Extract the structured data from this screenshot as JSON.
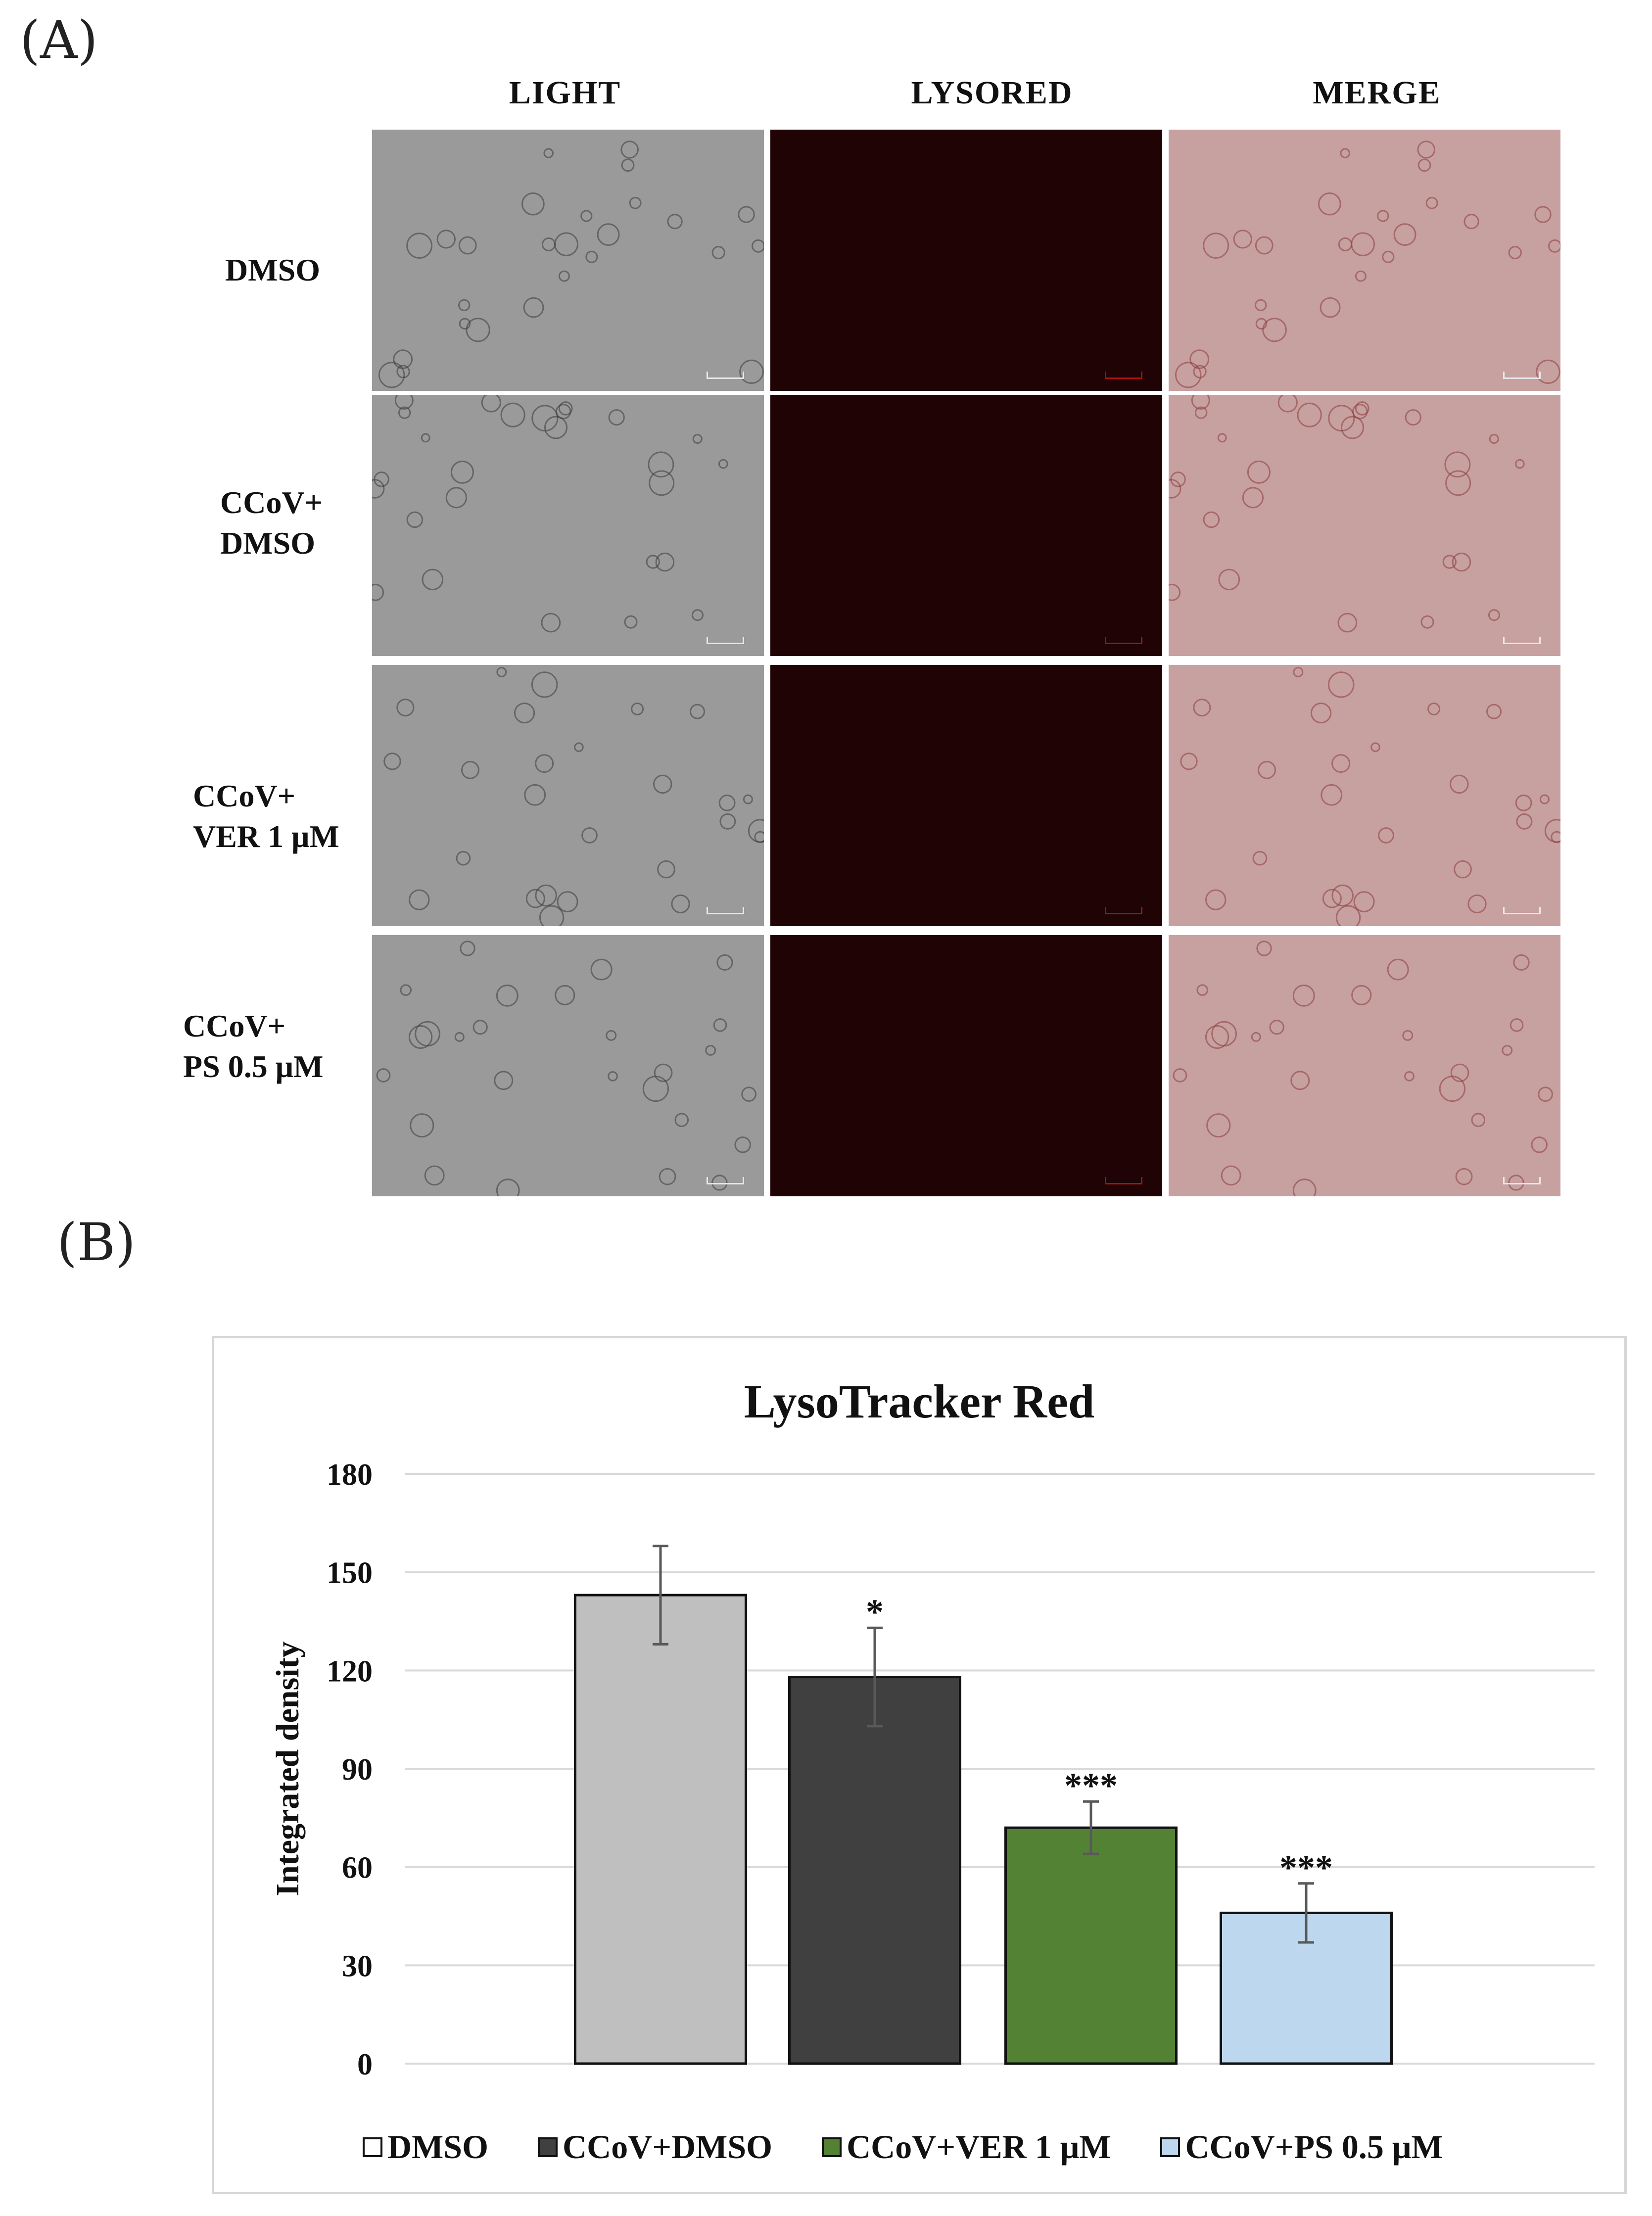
{
  "panel_a": {
    "label": "(A)",
    "columns": [
      "LIGHT",
      "LYSORED",
      "MERGE"
    ],
    "rows": [
      {
        "label": "DMSO"
      },
      {
        "label": "CCoV+\nDMSO"
      },
      {
        "label": "CCoV+\nVER 1 μM"
      },
      {
        "label": "CCoV+\nPS 0.5 μM"
      }
    ],
    "colors": {
      "light": "#9a9a9a",
      "lysored": "#200304",
      "merge": "#c7a0a0"
    }
  },
  "panel_b": {
    "label": "(B)"
  },
  "chart_data": {
    "type": "bar",
    "title": "LysoTracker  Red",
    "xlabel": "",
    "ylabel": "Integrated density",
    "ylim": [
      0,
      180
    ],
    "yticks": [
      0,
      30,
      60,
      90,
      120,
      150,
      180
    ],
    "grid": true,
    "legend_position": "bottom",
    "categories": [
      "DMSO",
      "CCoV+DMSO",
      "CCoV+VER 1 μM",
      "CCoV+PS 0.5 μM"
    ],
    "values": [
      143,
      118,
      72,
      46
    ],
    "errors": [
      15,
      15,
      8,
      9
    ],
    "annotations": [
      "",
      "*",
      "***",
      "***"
    ],
    "colors": [
      "#bfbfbf",
      "#404040",
      "#548235",
      "#bdd7ee"
    ]
  }
}
